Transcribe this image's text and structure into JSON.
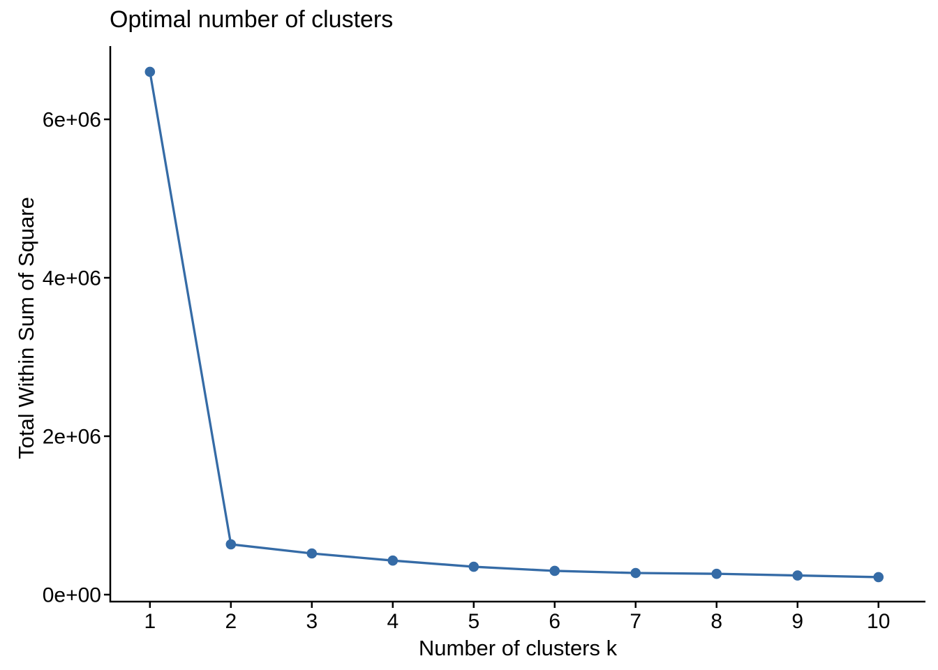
{
  "chart_data": {
    "type": "line",
    "title": "Optimal number of clusters",
    "xlabel": "Number of clusters k",
    "ylabel": "Total Within Sum of Square",
    "series": [
      {
        "name": "Total within sum of square",
        "x": [
          1,
          2,
          3,
          4,
          5,
          6,
          7,
          8,
          9,
          10
        ],
        "values": [
          6600000,
          635000,
          520000,
          430000,
          352000,
          300000,
          273000,
          263000,
          242000,
          221000
        ]
      }
    ],
    "x_ticks": {
      "values": [
        1,
        2,
        3,
        4,
        5,
        6,
        7,
        8,
        9,
        10
      ],
      "labels": [
        "1",
        "2",
        "3",
        "4",
        "5",
        "6",
        "7",
        "8",
        "9",
        "10"
      ]
    },
    "y_ticks": {
      "values": [
        0,
        2000000,
        4000000,
        6000000
      ],
      "labels": [
        "0e+00",
        "2e+06",
        "4e+06",
        "6e+06"
      ]
    },
    "xlim": [
      0.51,
      10.58
    ],
    "ylim": [
      -88000,
      6925000
    ],
    "grid": "off",
    "legend": "none",
    "styles": {
      "line_color": "#356BA6",
      "point_color": "#356BA6",
      "axis_color": "#000000",
      "text_color": "#000000",
      "tick_font_size": 30,
      "point_radius": 7.3,
      "line_width": 3.3,
      "axis_width": 2.5,
      "tick_length": 9
    }
  }
}
